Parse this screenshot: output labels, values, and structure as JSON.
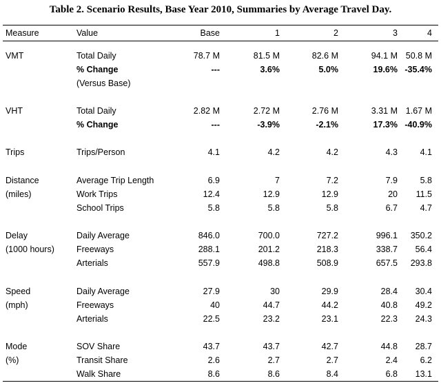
{
  "title": "Table 2. Scenario Results, Base Year 2010, Summaries by Average Travel Day.",
  "headers": [
    "Measure",
    "Value",
    "Base",
    "1",
    "2",
    "3",
    "4"
  ],
  "rows": [
    {
      "measure": "VMT",
      "value": "Total Daily",
      "cells": [
        "78.7 M",
        "81.5 M",
        "82.6 M",
        "94.1 M",
        "50.8 M"
      ],
      "bold": false
    },
    {
      "measure": "",
      "value": "% Change",
      "cells": [
        "---",
        "3.6%",
        "5.0%",
        "19.6%",
        "-35.4%"
      ],
      "bold": true
    },
    {
      "measure": "",
      "value": "(Versus Base)",
      "cells": [
        "",
        "",
        "",
        "",
        ""
      ],
      "bold": false
    },
    {
      "measure": "VHT",
      "value": "Total Daily",
      "cells": [
        "2.82 M",
        "2.72 M",
        "2.76 M",
        "3.31 M",
        "1.67 M"
      ],
      "bold": false
    },
    {
      "measure": "",
      "value": "% Change",
      "cells": [
        "---",
        "-3.9%",
        "-2.1%",
        "17.3%",
        "-40.9%"
      ],
      "bold": true
    },
    {
      "measure": "Trips",
      "value": "Trips/Person",
      "cells": [
        "4.1",
        "4.2",
        "4.2",
        "4.3",
        "4.1"
      ],
      "bold": false
    },
    {
      "measure": "Distance",
      "value": "Average Trip Length",
      "cells": [
        "6.9",
        "7",
        "7.2",
        "7.9",
        "5.8"
      ],
      "bold": false
    },
    {
      "measure": "(miles)",
      "value": "Work Trips",
      "cells": [
        "12.4",
        "12.9",
        "12.9",
        "20",
        "11.5"
      ],
      "bold": false
    },
    {
      "measure": "",
      "value": "School Trips",
      "cells": [
        "5.8",
        "5.8",
        "5.8",
        "6.7",
        "4.7"
      ],
      "bold": false
    },
    {
      "measure": "Delay",
      "value": "Daily Average",
      "cells": [
        "846.0",
        "700.0",
        "727.2",
        "996.1",
        "350.2"
      ],
      "bold": false
    },
    {
      "measure": "(1000 hours)",
      "value": "Freeways",
      "cells": [
        "288.1",
        "201.2",
        "218.3",
        "338.7",
        "56.4"
      ],
      "bold": false
    },
    {
      "measure": "",
      "value": "Arterials",
      "cells": [
        "557.9",
        "498.8",
        "508.9",
        "657.5",
        "293.8"
      ],
      "bold": false
    },
    {
      "measure": "Speed",
      "value": "Daily Average",
      "cells": [
        "27.9",
        "30",
        "29.9",
        "28.4",
        "30.4"
      ],
      "bold": false
    },
    {
      "measure": "(mph)",
      "value": "Freeways",
      "cells": [
        "40",
        "44.7",
        "44.2",
        "40.8",
        "49.2"
      ],
      "bold": false
    },
    {
      "measure": "",
      "value": "Arterials",
      "cells": [
        "22.5",
        "23.2",
        "23.1",
        "22.3",
        "24.3"
      ],
      "bold": false
    },
    {
      "measure": "Mode",
      "value": "SOV Share",
      "cells": [
        "43.7",
        "43.7",
        "42.7",
        "44.8",
        "28.7"
      ],
      "bold": false
    },
    {
      "measure": "(%)",
      "value": "Transit Share",
      "cells": [
        "2.6",
        "2.7",
        "2.7",
        "2.4",
        "6.2"
      ],
      "bold": false
    },
    {
      "measure": "",
      "value": "Walk Share",
      "cells": [
        "8.6",
        "8.6",
        "8.4",
        "6.8",
        "13.1"
      ],
      "bold": false
    }
  ]
}
